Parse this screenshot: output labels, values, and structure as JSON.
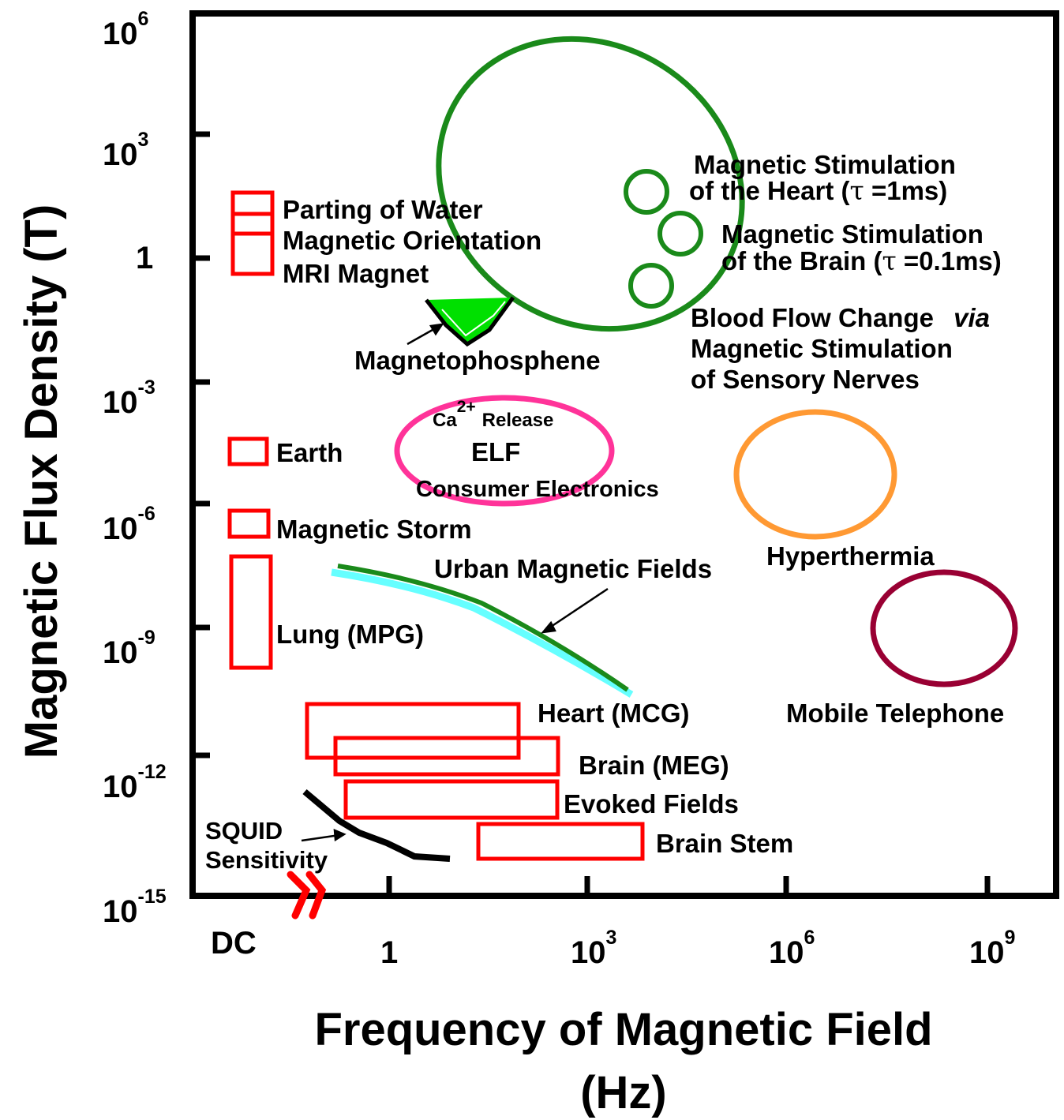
{
  "chart_data": {
    "type": "scatter",
    "x_axis": {
      "label_line1": "Frequency of Magnetic Field",
      "label_line2": "(Hz)",
      "scale": "log",
      "tick_labels": [
        {
          "base": "DC",
          "exp": ""
        },
        {
          "base": "1",
          "exp": ""
        },
        {
          "base": "10",
          "exp": "3"
        },
        {
          "base": "10",
          "exp": "6"
        },
        {
          "base": "10",
          "exp": "9"
        }
      ]
    },
    "y_axis": {
      "label": "Magnetic Flux Density  (T)",
      "scale": "log",
      "tick_labels": [
        {
          "base": "10",
          "exp": "6"
        },
        {
          "base": "10",
          "exp": "3"
        },
        {
          "base": "1",
          "exp": ""
        },
        {
          "base": "10",
          "exp": "-3"
        },
        {
          "base": "10",
          "exp": "-6"
        },
        {
          "base": "10",
          "exp": "-9"
        },
        {
          "base": "10",
          "exp": "-12"
        },
        {
          "base": "10",
          "exp": "-15"
        }
      ]
    },
    "regions": [
      {
        "name": "Parting of Water",
        "freq": "DC",
        "flux_T": [
          10,
          50
        ],
        "color": "#ff0000"
      },
      {
        "name": "Magnetic Orientation",
        "freq": "DC",
        "flux_T": [
          2,
          10
        ],
        "color": "#ff0000"
      },
      {
        "name": "MRI Magnet",
        "freq": "DC",
        "flux_T": [
          0.5,
          2
        ],
        "color": "#ff0000"
      },
      {
        "name": "Earth",
        "freq": "DC",
        "flux_T": [
          2e-05,
          6e-05
        ],
        "color": "#ff0000"
      },
      {
        "name": "Magnetic Storm",
        "freq": "DC",
        "flux_T": [
          2e-07,
          1e-06
        ],
        "color": "#ff0000"
      },
      {
        "name": "Lung (MPG)",
        "freq": "DC",
        "flux_T": [
          3e-11,
          1e-07
        ],
        "color": "#ff0000"
      },
      {
        "name": "Heart (MCG)",
        "freq_Hz": [
          0.1,
          300
        ],
        "flux_T": [
          1e-12,
          1e-10
        ],
        "color": "#ff0000"
      },
      {
        "name": "Brain (MEG)",
        "freq_Hz": [
          0.3,
          1000
        ],
        "flux_T": [
          5e-13,
          1e-11
        ],
        "color": "#ff0000"
      },
      {
        "name": "Evoked Fields",
        "freq_Hz": [
          0.4,
          1000
        ],
        "flux_T": [
          3e-14,
          3e-13
        ],
        "color": "#ff0000"
      },
      {
        "name": "Brain Stem",
        "freq_Hz": [
          50,
          10000
        ],
        "flux_T": [
          2e-15,
          2e-14
        ],
        "color": "#ff0000"
      }
    ],
    "labels": {
      "parting": "Parting of Water",
      "orient": "Magnetic Orientation",
      "mri": "MRI Magnet",
      "magnetophosphene": "Magnetophosphene",
      "ca_release_base": "Ca",
      "ca_release_sup": "2+",
      "ca_release_word": "Release",
      "elf": "ELF",
      "consumer": "Consumer Electronics",
      "earth": "Earth",
      "storm": "Magnetic Storm",
      "lung": "Lung (MPG)",
      "urban": "Urban Magnetic Fields",
      "heart": "Heart (MCG)",
      "brain": "Brain (MEG)",
      "evoked": "Evoked Fields",
      "brainstem": "Brain Stem",
      "squid1": "SQUID",
      "squid2": "Sensitivity",
      "stim_heart1": "Magnetic Stimulation",
      "stim_heart2a": "of the Heart (",
      "stim_heart_tau": "τ",
      "stim_heart2b": " =1ms)",
      "stim_brain1": "Magnetic Stimulation",
      "stim_brain2a": "of the Brain  (",
      "stim_brain_tau": "τ",
      "stim_brain2b": " =0.1ms)",
      "blood1a": "Blood Flow Change ",
      "blood1b": "via",
      "blood2": "Magnetic Stimulation",
      "blood3": "of Sensory Nerves",
      "hyperthermia": "Hyperthermia",
      "mobile": "Mobile Telephone"
    },
    "colors": {
      "red": "#ff0000",
      "green": "#1a8a1a",
      "bright_green": "#00e000",
      "pink": "#ff3399",
      "orange": "#ff9933",
      "maroon": "#990033",
      "cyan": "#66ffff",
      "black": "#000000"
    }
  }
}
